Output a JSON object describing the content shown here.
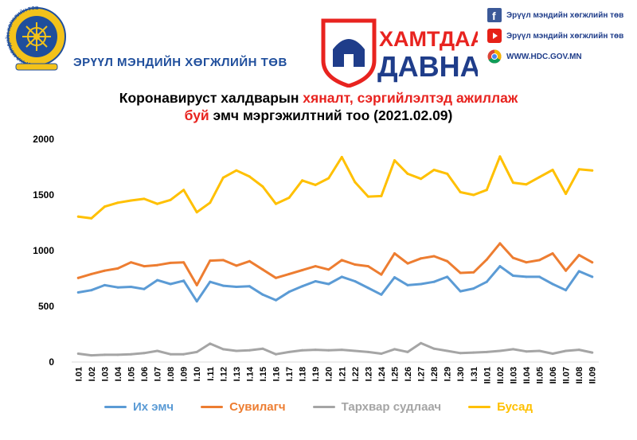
{
  "header": {
    "org_name": "ЭРҮҮЛ МЭНДИЙН ХӨГЖЛИЙН ТӨВ",
    "emblem_ring_text": "ЭРҮҮЛ МЭНДИЙН ХӨГЖЛИЙН ТӨВ",
    "campaign_top": "ХАМТДАА",
    "campaign_bottom": "ДАВНА",
    "social": [
      {
        "icon": "facebook-icon",
        "text": "Эрүүл мэндийн хөгжлийн төв"
      },
      {
        "icon": "youtube-icon",
        "text": "Эрүүл мэндийн хөгжлийн төв"
      },
      {
        "icon": "chrome-icon",
        "text": "WWW.HDC.GOV.MN"
      }
    ]
  },
  "title": {
    "line1_black": "Коронавируст халдварын ",
    "line1_red": "хяналт, сэргийлэлтэд ажиллаж",
    "line2_red": "буй",
    "line2_black": " эмч мэргэжилтний тоо (2021.02.09)"
  },
  "colors": {
    "brand_blue": "#1f4e9c",
    "accent_red": "#e8231f",
    "series": [
      "#5b9bd5",
      "#ed7d31",
      "#a5a5a5",
      "#ffc000"
    ]
  },
  "chart_data": {
    "type": "line",
    "title": "Коронавируст халдварын хяналт, сэргийлэлтэд ажиллаж буй эмч мэргэжилтний тоо (2021.02.09)",
    "xlabel": "",
    "ylabel": "",
    "ylim": [
      0,
      2000
    ],
    "yticks": [
      0,
      500,
      1000,
      1500,
      2000
    ],
    "grid": false,
    "legend_position": "bottom",
    "categories": [
      "I.01",
      "I.02",
      "I.03",
      "I.04",
      "I.05",
      "I.06",
      "I.07",
      "I.08",
      "I.09",
      "I.10",
      "I.11",
      "I.12",
      "I.13",
      "I.14",
      "I.15",
      "I.16",
      "I.17",
      "I.18",
      "I.19",
      "I.20",
      "I.21",
      "I.22",
      "I.23",
      "I.24",
      "I.25",
      "I.26",
      "I.27",
      "I.28",
      "I.29",
      "I.30",
      "I.31",
      "II.01",
      "II.02",
      "II.03",
      "II.04",
      "II.05",
      "II.06",
      "II.07",
      "II.08",
      "II.09"
    ],
    "series": [
      {
        "name": "Их эмч",
        "color": "#5b9bd5",
        "values": [
          625,
          645,
          690,
          670,
          675,
          655,
          735,
          700,
          730,
          545,
          720,
          685,
          675,
          680,
          605,
          555,
          630,
          680,
          725,
          700,
          765,
          725,
          665,
          605,
          760,
          690,
          700,
          720,
          765,
          635,
          660,
          720,
          860,
          775,
          765,
          765,
          700,
          645,
          815,
          765
        ]
      },
      {
        "name": "Сувилагч",
        "color": "#ed7d31",
        "values": [
          755,
          790,
          820,
          840,
          895,
          860,
          870,
          890,
          895,
          690,
          910,
          915,
          865,
          905,
          830,
          755,
          790,
          825,
          860,
          830,
          915,
          875,
          860,
          785,
          975,
          885,
          930,
          950,
          905,
          800,
          805,
          920,
          1065,
          935,
          895,
          915,
          975,
          820,
          960,
          895
        ]
      },
      {
        "name": "Тархвар судлаач",
        "color": "#a5a5a5",
        "values": [
          75,
          60,
          65,
          65,
          70,
          80,
          100,
          70,
          70,
          90,
          165,
          115,
          100,
          105,
          120,
          70,
          90,
          105,
          110,
          105,
          110,
          100,
          90,
          75,
          115,
          90,
          170,
          120,
          100,
          80,
          85,
          90,
          100,
          115,
          95,
          100,
          75,
          100,
          110,
          85
        ]
      },
      {
        "name": "Бусад",
        "color": "#ffc000",
        "values": [
          1305,
          1290,
          1395,
          1430,
          1450,
          1465,
          1420,
          1455,
          1545,
          1345,
          1430,
          1655,
          1720,
          1665,
          1575,
          1420,
          1475,
          1630,
          1590,
          1650,
          1840,
          1615,
          1485,
          1490,
          1810,
          1690,
          1645,
          1725,
          1690,
          1525,
          1500,
          1545,
          1845,
          1610,
          1595,
          1660,
          1725,
          1510,
          1730,
          1720
        ]
      }
    ]
  }
}
